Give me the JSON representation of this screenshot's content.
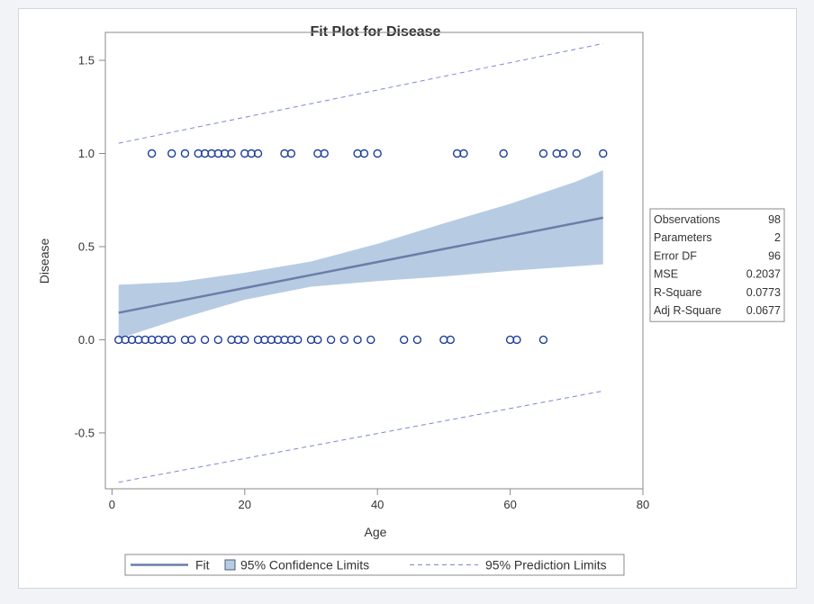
{
  "chart_data": {
    "type": "scatter",
    "title": "Fit Plot for Disease",
    "xlabel": "Age",
    "ylabel": "Disease",
    "xlim": [
      -1,
      80
    ],
    "ylim": [
      -0.8,
      1.65
    ],
    "xticks": [
      0,
      20,
      40,
      60,
      80
    ],
    "yticks": [
      -0.5,
      0.0,
      0.5,
      1.0,
      1.5
    ],
    "ytick_labels": [
      "-0.5",
      "0.0",
      "0.5",
      "1.0",
      "1.5"
    ],
    "grid": false,
    "legend_position": "bottom",
    "legend": [
      {
        "label": "Fit",
        "kind": "line"
      },
      {
        "label": "95% Confidence Limits",
        "kind": "band"
      },
      {
        "label": "95% Prediction Limits",
        "kind": "dashed"
      }
    ],
    "observations": {
      "y1_ages": [
        6,
        9,
        11,
        13,
        14,
        15,
        16,
        17,
        18,
        20,
        21,
        22,
        26,
        27,
        31,
        32,
        37,
        38,
        40,
        52,
        53,
        59,
        65,
        67,
        68,
        70,
        74
      ],
      "y0_ages": [
        1,
        2,
        3,
        4,
        5,
        6,
        7,
        8,
        9,
        11,
        12,
        14,
        16,
        18,
        19,
        20,
        22,
        23,
        24,
        25,
        26,
        27,
        28,
        30,
        31,
        33,
        35,
        37,
        39,
        44,
        46,
        50,
        51,
        60,
        61,
        65
      ]
    },
    "fit": {
      "x": [
        1,
        74
      ],
      "y": [
        0.145,
        0.655
      ]
    },
    "confidence_band": {
      "x": [
        1,
        10,
        20,
        30,
        40,
        50,
        60,
        70,
        74
      ],
      "lower": [
        0.005,
        0.11,
        0.215,
        0.285,
        0.315,
        0.34,
        0.37,
        0.395,
        0.405
      ],
      "upper": [
        0.295,
        0.31,
        0.36,
        0.42,
        0.515,
        0.625,
        0.73,
        0.85,
        0.91
      ]
    },
    "prediction_limits": {
      "x": [
        1,
        74
      ],
      "lower": [
        -0.765,
        -0.275
      ],
      "upper": [
        1.055,
        1.59
      ]
    },
    "colors": {
      "points": "#1f3f9a",
      "fit": "#6a7ea8",
      "band": "#b7cce3",
      "prediction": "#7d86d6",
      "axis": "#888888"
    }
  },
  "fit_statistics": [
    {
      "label": "Observations",
      "value": "98"
    },
    {
      "label": "Parameters",
      "value": "2"
    },
    {
      "label": "Error DF",
      "value": "96"
    },
    {
      "label": "MSE",
      "value": "0.2037"
    },
    {
      "label": "R-Square",
      "value": "0.0773"
    },
    {
      "label": "Adj R-Square",
      "value": "0.0677"
    }
  ]
}
